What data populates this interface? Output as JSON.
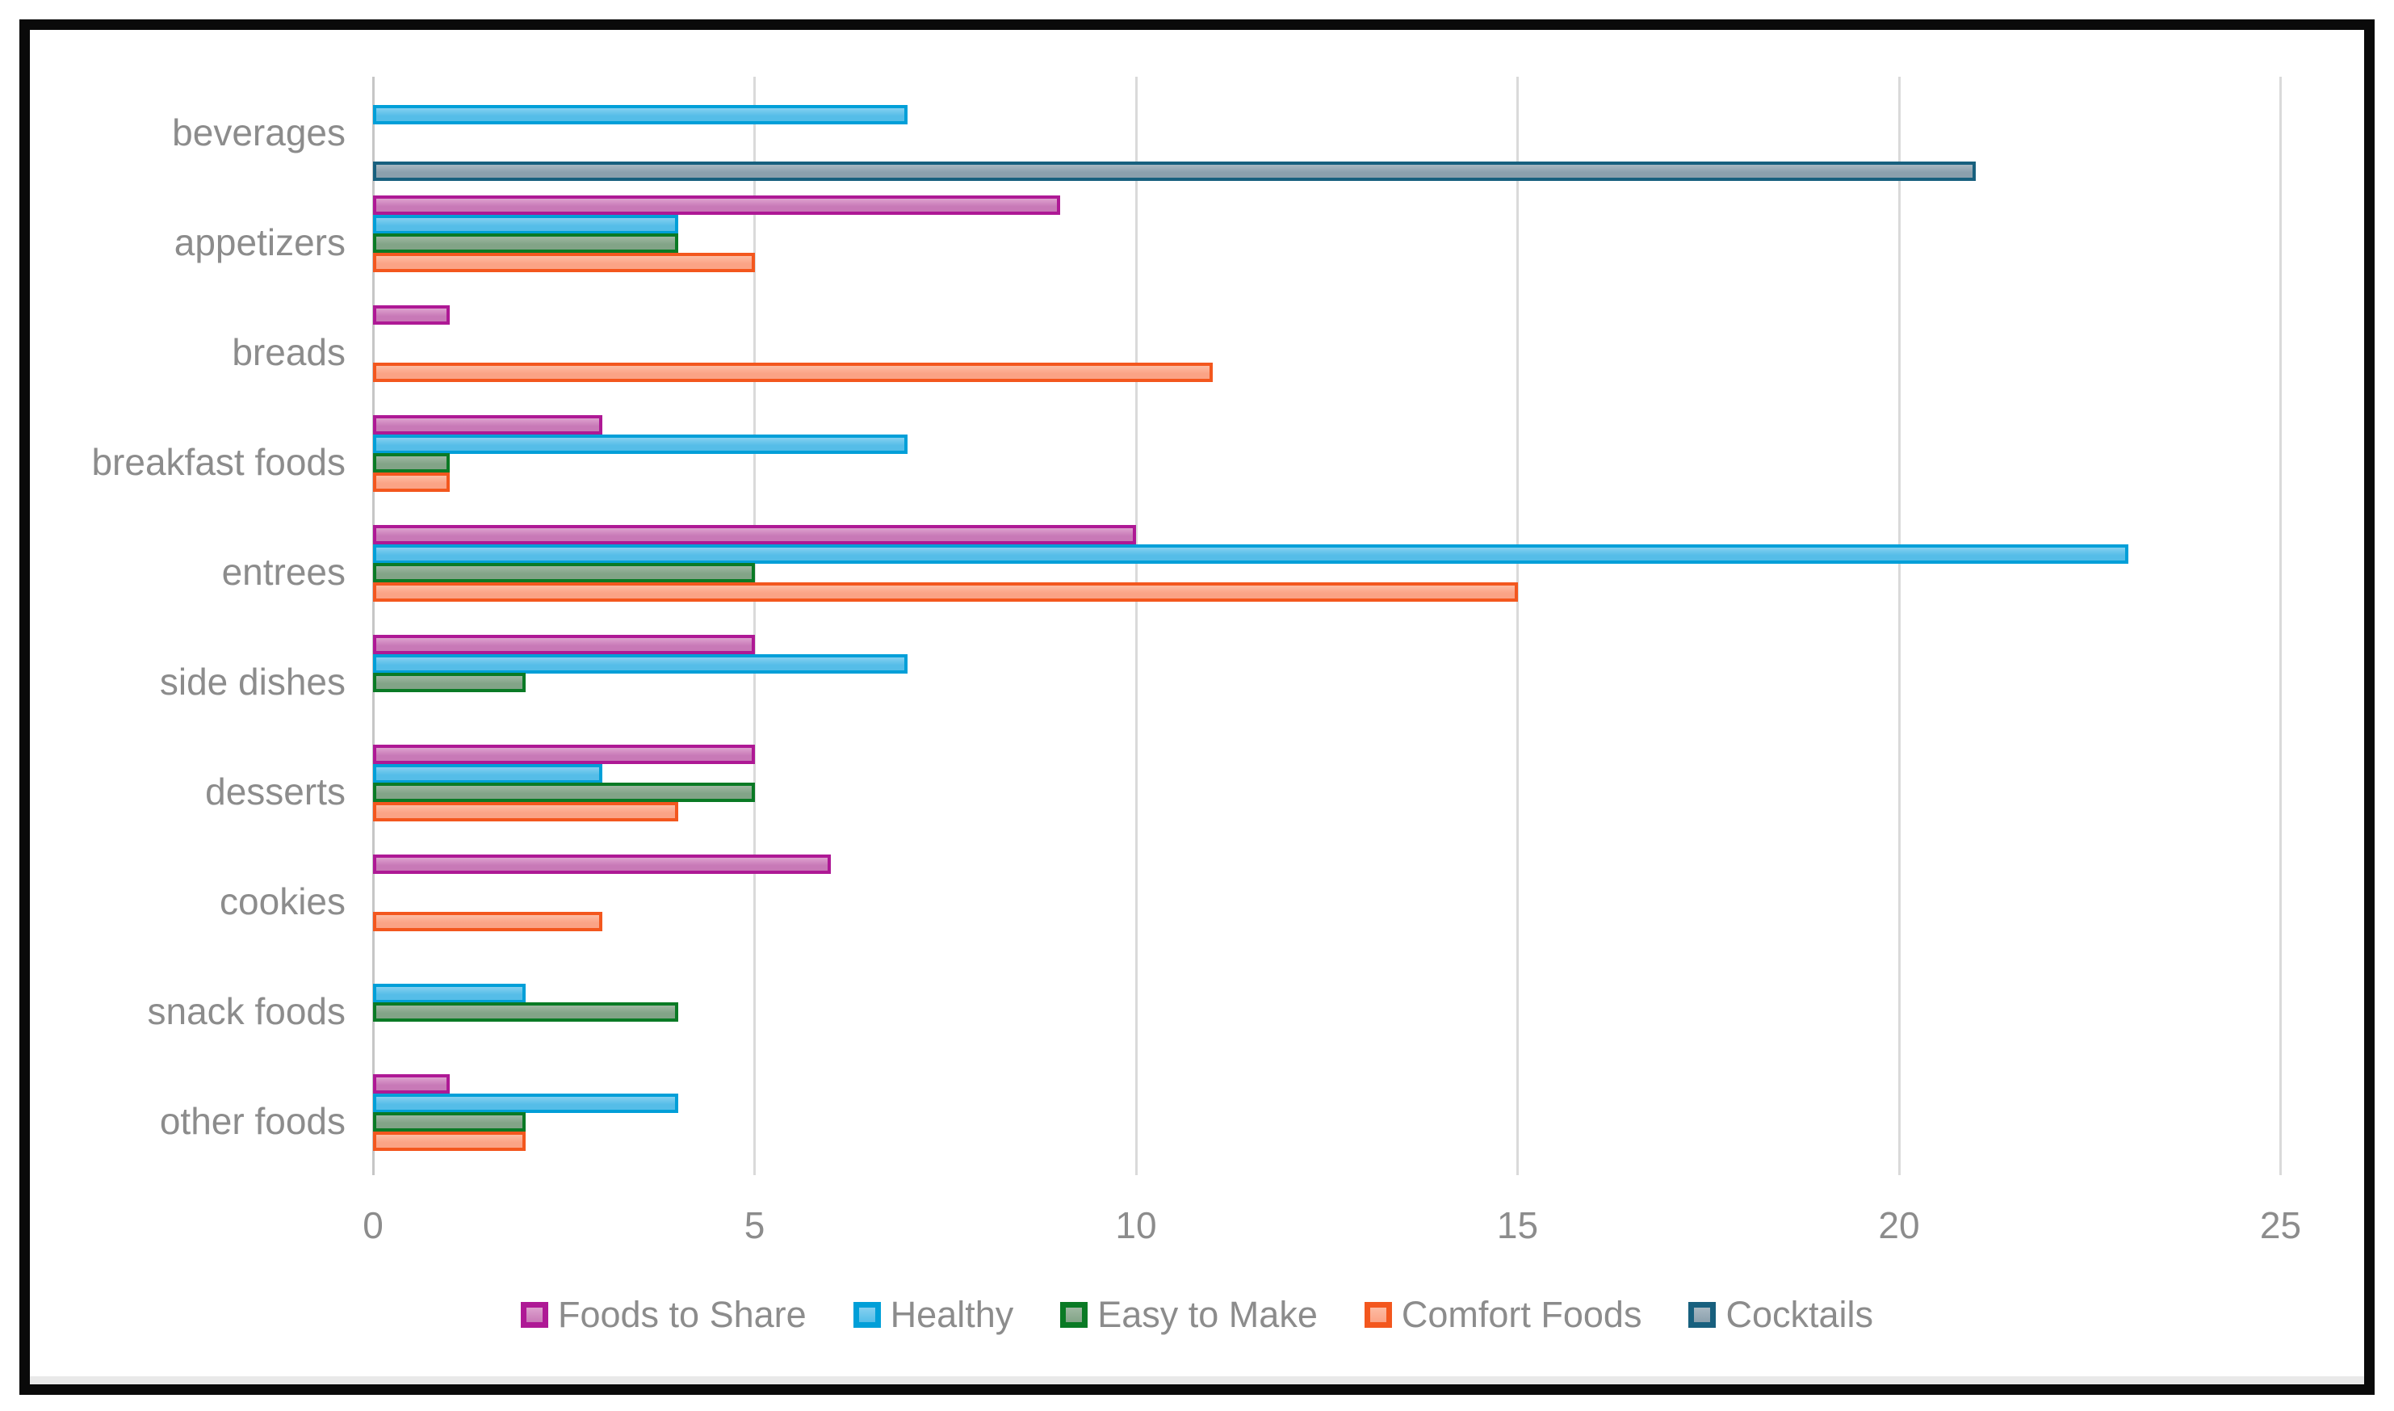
{
  "chart_data": {
    "type": "bar",
    "orientation": "horizontal",
    "title": "",
    "xlabel": "",
    "ylabel": "",
    "categories": [
      "beverages",
      "appetizers",
      "breads",
      "breakfast foods",
      "entrees",
      "side dishes",
      "desserts",
      "cookies",
      "snack foods",
      "other foods"
    ],
    "series": [
      {
        "name": "Foods to Share",
        "border_color": "#AE1995",
        "fill_color": "#C879B7",
        "fill_light": "#DDA2CE",
        "values": [
          0,
          9,
          1,
          3,
          10,
          5,
          5,
          6,
          0,
          1
        ]
      },
      {
        "name": "Healthy",
        "border_color": "#009FD8",
        "fill_color": "#55BDE8",
        "fill_light": "#85D0F0",
        "values": [
          7,
          4,
          0,
          7,
          23,
          7,
          3,
          0,
          2,
          4
        ]
      },
      {
        "name": "Easy to Make",
        "border_color": "#0A7A25",
        "fill_color": "#82A487",
        "fill_light": "#9FB8A2",
        "values": [
          0,
          4,
          0,
          1,
          5,
          2,
          5,
          0,
          4,
          2
        ]
      },
      {
        "name": "Comfort Foods",
        "border_color": "#F3571E",
        "fill_color": "#FBA385",
        "fill_light": "#FDBCA3",
        "values": [
          0,
          5,
          11,
          1,
          15,
          0,
          4,
          3,
          0,
          2
        ]
      },
      {
        "name": "Cocktails",
        "border_color": "#18607E",
        "fill_color": "#8BA0AD",
        "fill_light": "#A8B8C2",
        "values": [
          21,
          0,
          0,
          0,
          0,
          0,
          0,
          0,
          0,
          0
        ]
      }
    ],
    "x_axis": {
      "min": 0,
      "max": 25,
      "ticks": [
        0,
        5,
        10,
        15,
        20,
        25
      ],
      "gridlines": true
    },
    "legend": {
      "position": "bottom",
      "labels": [
        "Foods to Share",
        "Healthy",
        "Easy to Make",
        "Comfort Foods",
        "Cocktails"
      ]
    }
  },
  "style": {
    "text_color": "#8C8C8C",
    "gridline_color": "#DADADA",
    "axis_line_color": "#C6C6C6",
    "frame_color": "#0A0A0A",
    "background": "#FFFFFF"
  }
}
